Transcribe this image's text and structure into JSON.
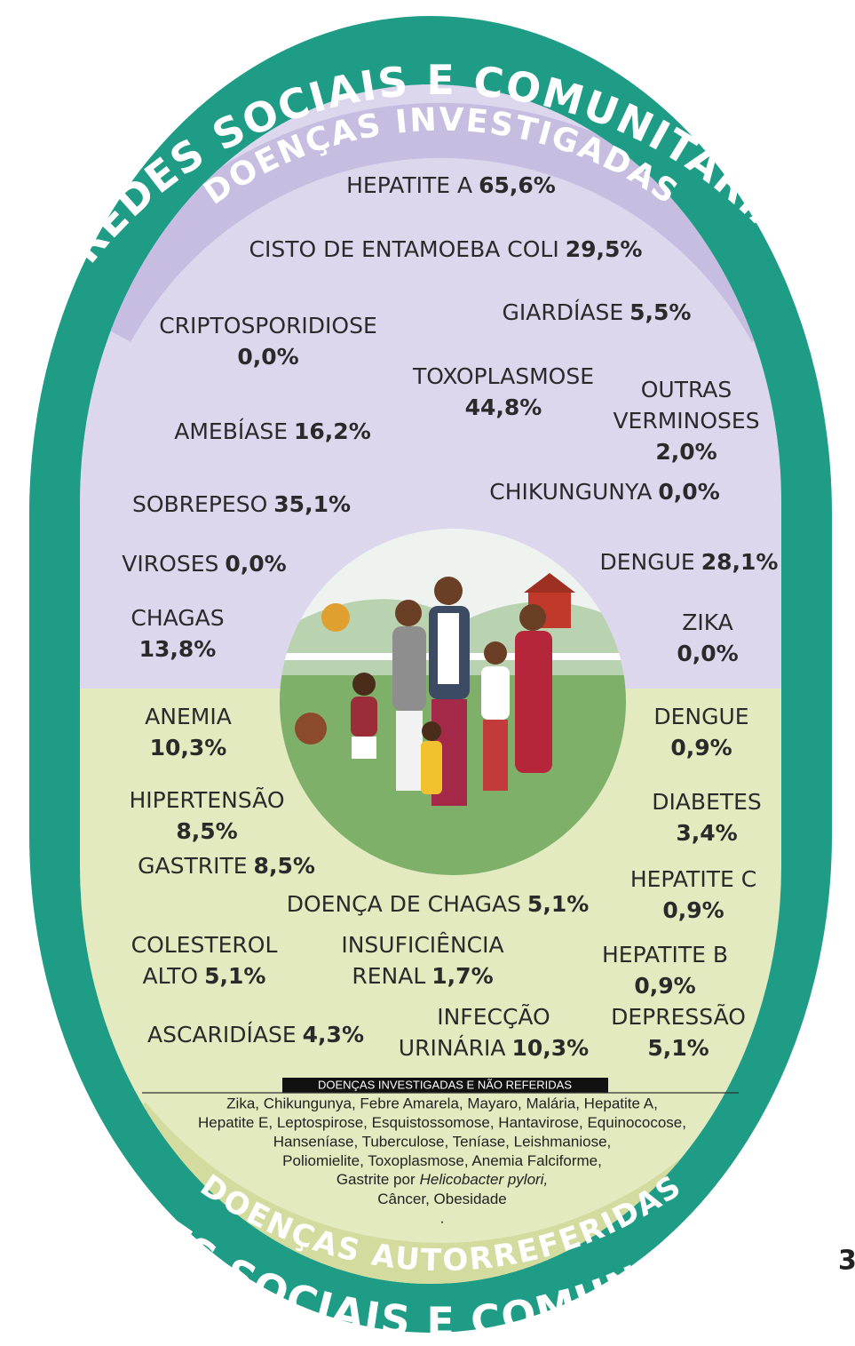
{
  "ring_title_top": "REDES SOCIAIS E COMUNITÁRIAS",
  "top_label": "DOENÇAS INVESTIGADAS",
  "bottom_label": "DOENÇAS AUTORREFERIDAS",
  "ring_title_bottom": "REDES SOCIAIS E COMUNITÁRIAS",
  "items": [
    {
      "name": [
        "HEPATITE A"
      ],
      "value": "65,6%"
    },
    {
      "name": [
        "CISTO DE ENTAMOEBA COLI"
      ],
      "value": "29,5%"
    },
    {
      "name": [
        "GIARDÍASE"
      ],
      "value": "5,5%"
    },
    {
      "name": [
        "CRIPTOSPORIDIOSE"
      ],
      "value": "0,0%"
    },
    {
      "name": [
        "TOXOPLASMOSE"
      ],
      "value": "44,8%"
    },
    {
      "name": [
        "OUTRAS",
        "VERMINOSES"
      ],
      "value": "2,0%"
    },
    {
      "name": [
        "AMEBÍASE"
      ],
      "value": "16,2%"
    },
    {
      "name": [
        "CHIKUNGUNYA"
      ],
      "value": "0,0%"
    },
    {
      "name": [
        "SOBREPESO"
      ],
      "value": "35,1%"
    },
    {
      "name": [
        "VIROSES"
      ],
      "value": "0,0%"
    },
    {
      "name": [
        "DENGUE"
      ],
      "value": "28,1%"
    },
    {
      "name": [
        "CHAGAS"
      ],
      "value": "13,8%"
    },
    {
      "name": [
        "ZIKA"
      ],
      "value": "0,0%"
    },
    {
      "name": [
        "ANEMIA"
      ],
      "value": "10,3%"
    },
    {
      "name": [
        "DENGUE"
      ],
      "value": "0,9%"
    },
    {
      "name": [
        "HIPERTENSÃO"
      ],
      "value": "8,5%"
    },
    {
      "name": [
        "DIABETES"
      ],
      "value": "3,4%"
    },
    {
      "name": [
        "GASTRITE"
      ],
      "value": "8,5%"
    },
    {
      "name": [
        "HEPATITE C"
      ],
      "value": "0,9%"
    },
    {
      "name": [
        "DOENÇA DE CHAGAS"
      ],
      "value": "5,1%"
    },
    {
      "name": [
        "COLESTEROL",
        "ALTO"
      ],
      "value": "5,1%"
    },
    {
      "name": [
        "INSUFICIÊNCIA",
        "RENAL"
      ],
      "value": "1,7%"
    },
    {
      "name": [
        "HEPATITE B"
      ],
      "value": "0,9%"
    },
    {
      "name": [
        "ASCARIDÍASE"
      ],
      "value": "4,3%"
    },
    {
      "name": [
        "INFECÇÃO",
        "URINÁRIA"
      ],
      "value": "10,3%"
    },
    {
      "name": [
        "DEPRESSÃO"
      ],
      "value": "5,1%"
    }
  ],
  "legend": {
    "title": "DOENÇAS INVESTIGADAS E NÃO REFERIDAS",
    "lines": [
      "Zika, Chikungunya, Febre Amarela, Mayaro, Malária, Hepatite A,",
      "Hepatite E, Leptospirose, Esquistossomose, Hantavirose, Equinococose,",
      "Hanseníase, Tuberculose, Teníase, Leishmaniose,",
      "Poliomielite, Toxoplasmose, Anemia Falciforme,",
      {
        "text": "Gastrite por",
        "italic_text": "Helicobacter pylori,"
      },
      "Câncer, Obesidade",
      "."
    ]
  },
  "page_number": "3"
}
